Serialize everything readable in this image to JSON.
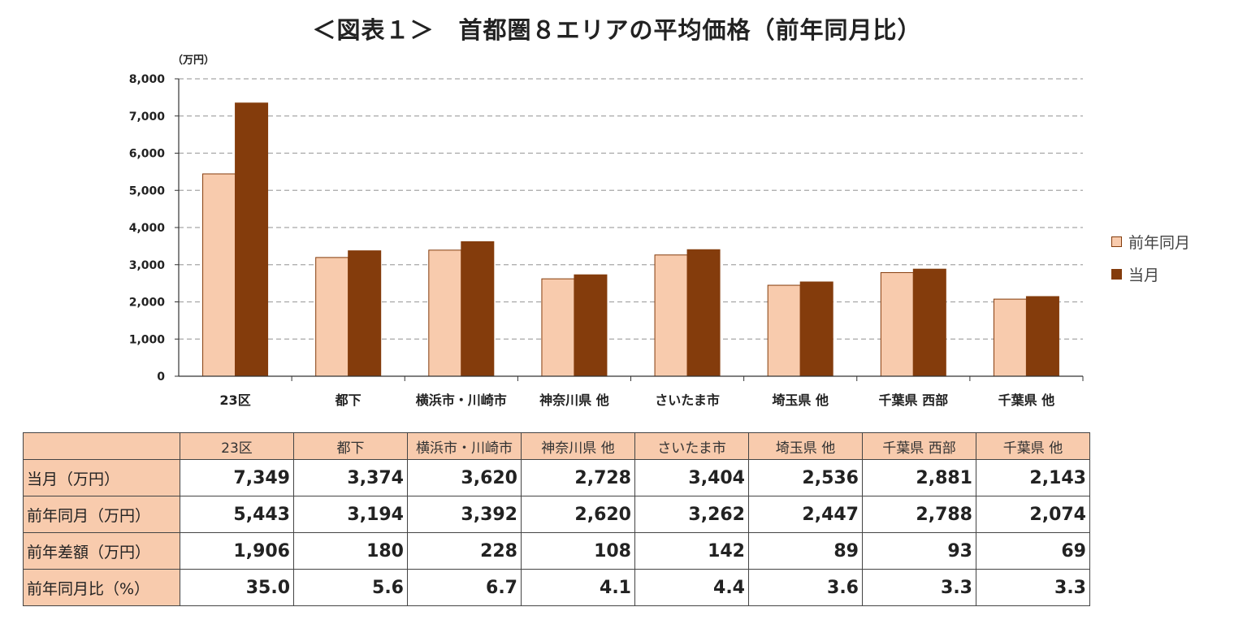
{
  "title": "＜図表１＞　首都圏８エリアの平均価格（前年同月比）",
  "chart_data": {
    "type": "bar",
    "unit_label": "（万円）",
    "categories": [
      "23区",
      "都下",
      "横浜市・川崎市",
      "神奈川県 他",
      "さいたま市",
      "埼玉県 他",
      "千葉県 西部",
      "千葉県 他"
    ],
    "series": [
      {
        "name": "前年同月",
        "color": "#F8CBAD",
        "values": [
          5443,
          3194,
          3392,
          2620,
          3262,
          2447,
          2788,
          2074
        ]
      },
      {
        "name": "当月",
        "color": "#843C0C",
        "values": [
          7349,
          3374,
          3620,
          2728,
          3404,
          2536,
          2881,
          2143
        ]
      }
    ],
    "ylim": [
      0,
      8000
    ],
    "yticks": [
      "0",
      "1,000",
      "2,000",
      "3,000",
      "4,000",
      "5,000",
      "6,000",
      "7,000",
      "8,000"
    ],
    "grid": true,
    "legend_position": "right"
  },
  "legend": {
    "prev": "前年同月",
    "cur": "当月"
  },
  "table": {
    "columns": [
      "23区",
      "都下",
      "横浜市・川崎市",
      "神奈川県 他",
      "さいたま市",
      "埼玉県 他",
      "千葉県 西部",
      "千葉県 他"
    ],
    "rows": [
      {
        "label": "当月（万円）",
        "values": [
          "7,349",
          "3,374",
          "3,620",
          "2,728",
          "3,404",
          "2,536",
          "2,881",
          "2,143"
        ]
      },
      {
        "label": "前年同月（万円）",
        "values": [
          "5,443",
          "3,194",
          "3,392",
          "2,620",
          "3,262",
          "2,447",
          "2,788",
          "2,074"
        ]
      },
      {
        "label": "前年差額（万円）",
        "values": [
          "1,906",
          "180",
          "228",
          "108",
          "142",
          "89",
          "93",
          "69"
        ]
      },
      {
        "label": "前年同月比（%）",
        "values": [
          "35.0",
          "5.6",
          "6.7",
          "4.1",
          "4.4",
          "3.6",
          "3.3",
          "3.3"
        ]
      }
    ]
  }
}
